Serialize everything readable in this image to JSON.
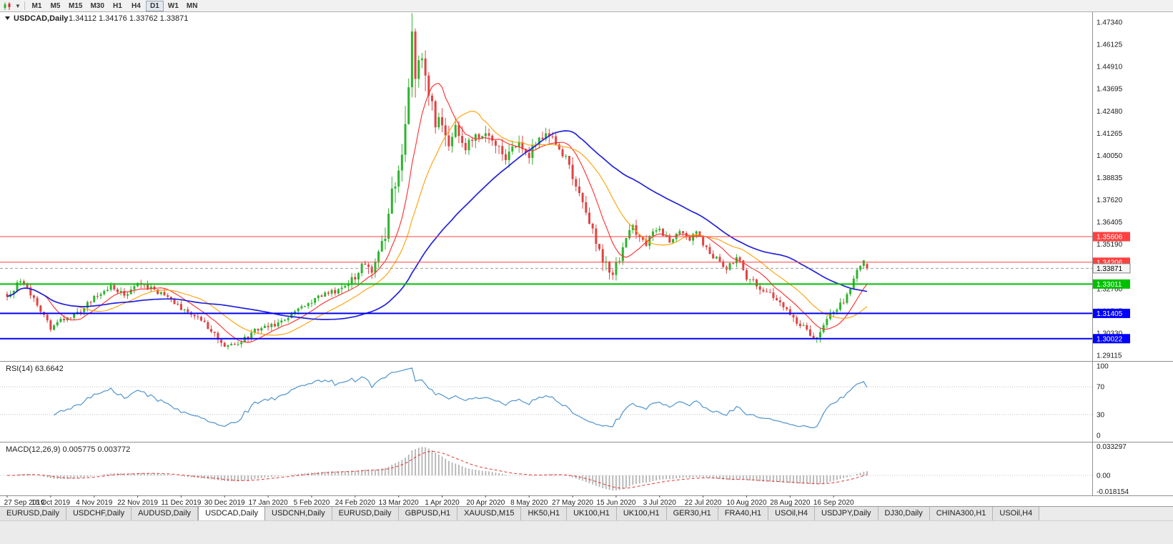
{
  "toolbar": {
    "chart_type_icon": "candlestick-chart-icon",
    "timeframes": [
      {
        "label": "M1",
        "active": false
      },
      {
        "label": "M5",
        "active": false
      },
      {
        "label": "M15",
        "active": false
      },
      {
        "label": "M30",
        "active": false
      },
      {
        "label": "H1",
        "active": false
      },
      {
        "label": "H4",
        "active": false
      },
      {
        "label": "D1",
        "active": true
      },
      {
        "label": "W1",
        "active": false
      },
      {
        "label": "MN",
        "active": false
      }
    ]
  },
  "chart_data": {
    "type": "candlestick",
    "symbol": "USDCAD",
    "timeframe": "Daily",
    "title": "USDCAD,Daily",
    "ohlc": {
      "open": "1.34112",
      "high": "1.34176",
      "low": "1.33762",
      "close": "1.33871"
    },
    "bars": 258,
    "price_scale": {
      "max": 1.4789,
      "min": 1.288
    },
    "y_axis_labels": [
      "1.47340",
      "1.46125",
      "1.44910",
      "1.43695",
      "1.42480",
      "1.41265",
      "1.40050",
      "1.38835",
      "1.37620",
      "1.36405",
      "1.35190",
      "1.33975",
      "1.32760",
      "1.31545",
      "1.30330",
      "1.29115"
    ],
    "x_axis_labels": [
      "27 Sep 2019",
      "16 Oct 2019",
      "4 Nov 2019",
      "22 Nov 2019",
      "11 Dec 2019",
      "30 Dec 2019",
      "17 Jan 2020",
      "5 Feb 2020",
      "24 Feb 2020",
      "13 Mar 2020",
      "1 Apr 2020",
      "20 Apr 2020",
      "8 May 2020",
      "27 May 2020",
      "15 Jun 2020",
      "3 Jul 2020",
      "22 Jul 2020",
      "10 Aug 2020",
      "28 Aug 2020",
      "16 Sep 2020"
    ],
    "x_label_bar_step": 13,
    "colors": {
      "up": "#2fb32f",
      "down": "#e04343",
      "background": "#ffffff",
      "axis_text": "#1a1a1a",
      "bid_line": "#9b9b9b"
    },
    "price_path_anchors": [
      [
        0,
        1.324
      ],
      [
        4,
        1.3315
      ],
      [
        8,
        1.323
      ],
      [
        13,
        1.3055
      ],
      [
        17,
        1.311
      ],
      [
        22,
        1.315
      ],
      [
        26,
        1.323
      ],
      [
        31,
        1.329
      ],
      [
        35,
        1.3245
      ],
      [
        39,
        1.3295
      ],
      [
        44,
        1.327
      ],
      [
        48,
        1.323
      ],
      [
        52,
        1.317
      ],
      [
        57,
        1.312
      ],
      [
        61,
        1.304
      ],
      [
        65,
        1.2968
      ],
      [
        68,
        1.2958
      ],
      [
        71,
        1.3
      ],
      [
        74,
        1.305
      ],
      [
        78,
        1.3068
      ],
      [
        83,
        1.3105
      ],
      [
        87,
        1.316
      ],
      [
        91,
        1.321
      ],
      [
        95,
        1.3245
      ],
      [
        99,
        1.327
      ],
      [
        104,
        1.334
      ],
      [
        107,
        1.342
      ],
      [
        109,
        1.339
      ],
      [
        111,
        1.346
      ],
      [
        113,
        1.358
      ],
      [
        114,
        1.372
      ],
      [
        116,
        1.386
      ],
      [
        117,
        1.395
      ],
      [
        119,
        1.418
      ],
      [
        120,
        1.442
      ],
      [
        121,
        1.463
      ],
      [
        122,
        1.445
      ],
      [
        124,
        1.451
      ],
      [
        126,
        1.436
      ],
      [
        128,
        1.416
      ],
      [
        130,
        1.421
      ],
      [
        132,
        1.408
      ],
      [
        134,
        1.417
      ],
      [
        137,
        1.406
      ],
      [
        140,
        1.411
      ],
      [
        143,
        1.415
      ],
      [
        146,
        1.408
      ],
      [
        149,
        1.399
      ],
      [
        152,
        1.407
      ],
      [
        156,
        1.401
      ],
      [
        159,
        1.409
      ],
      [
        162,
        1.413
      ],
      [
        165,
        1.404
      ],
      [
        167,
        1.399
      ],
      [
        169,
        1.39
      ],
      [
        171,
        1.378
      ],
      [
        173,
        1.368
      ],
      [
        175,
        1.358
      ],
      [
        177,
        1.349
      ],
      [
        179,
        1.34
      ],
      [
        181,
        1.337
      ],
      [
        183,
        1.345
      ],
      [
        185,
        1.354
      ],
      [
        187,
        1.362
      ],
      [
        189,
        1.356
      ],
      [
        191,
        1.353
      ],
      [
        193,
        1.357
      ],
      [
        195,
        1.359
      ],
      [
        198,
        1.3545
      ],
      [
        201,
        1.3575
      ],
      [
        204,
        1.3545
      ],
      [
        206,
        1.359
      ],
      [
        208,
        1.351
      ],
      [
        211,
        1.345
      ],
      [
        213,
        1.342
      ],
      [
        215,
        1.3395
      ],
      [
        217,
        1.343
      ],
      [
        219,
        1.3445
      ],
      [
        221,
        1.334
      ],
      [
        223,
        1.331
      ],
      [
        225,
        1.328
      ],
      [
        228,
        1.3245
      ],
      [
        231,
        1.3195
      ],
      [
        234,
        1.3125
      ],
      [
        237,
        1.308
      ],
      [
        240,
        1.3032
      ],
      [
        242,
        1.3006
      ],
      [
        244,
        1.309
      ],
      [
        246,
        1.314
      ],
      [
        248,
        1.3165
      ],
      [
        250,
        1.3205
      ],
      [
        252,
        1.329
      ],
      [
        254,
        1.3375
      ],
      [
        256,
        1.342
      ],
      [
        257,
        1.3387
      ]
    ],
    "volatility_anchors": [
      [
        0,
        0.0042
      ],
      [
        60,
        0.004
      ],
      [
        90,
        0.0038
      ],
      [
        104,
        0.0055
      ],
      [
        110,
        0.0085
      ],
      [
        114,
        0.013
      ],
      [
        118,
        0.0175
      ],
      [
        121,
        0.021
      ],
      [
        124,
        0.0165
      ],
      [
        128,
        0.013
      ],
      [
        134,
        0.0105
      ],
      [
        142,
        0.0085
      ],
      [
        152,
        0.0075
      ],
      [
        164,
        0.0065
      ],
      [
        170,
        0.0085
      ],
      [
        176,
        0.009
      ],
      [
        182,
        0.0075
      ],
      [
        190,
        0.0058
      ],
      [
        200,
        0.0048
      ],
      [
        210,
        0.0045
      ],
      [
        220,
        0.0048
      ],
      [
        232,
        0.0045
      ],
      [
        242,
        0.0055
      ],
      [
        250,
        0.0048
      ],
      [
        257,
        0.004
      ]
    ],
    "moving_averages": [
      {
        "period": 10,
        "color": "#ff2a2a"
      },
      {
        "period": 21,
        "color": "#ff9e00"
      },
      {
        "period": 50,
        "color": "#2222dd"
      }
    ],
    "horizontal_levels": [
      {
        "label": "1.35606",
        "price": 1.35606,
        "color": "#ff4040",
        "width": 1
      },
      {
        "label": "1.34206",
        "price": 1.34206,
        "color": "#ff4040",
        "width": 1
      },
      {
        "label": "1.33011",
        "price": 1.33011,
        "color": "#00c000",
        "width": 2
      },
      {
        "label": "1.31405",
        "price": 1.31405,
        "color": "#0000ff",
        "width": 2
      },
      {
        "label": "1.30022",
        "price": 1.30022,
        "color": "#0000ff",
        "width": 2
      }
    ],
    "current_price": {
      "value": 1.33871,
      "label": "1.33871"
    },
    "indicators": {
      "rsi": {
        "label": "RSI(14)",
        "value": "63.6642",
        "line_color": "#4f94cd",
        "axis_levels": [
          "100",
          "70",
          "30",
          "0"
        ],
        "level_lines": [
          70,
          30
        ],
        "period": 14
      },
      "macd": {
        "label": "MACD(12,26,9)",
        "value_main": "0.005775",
        "value_signal": "0.003772",
        "histogram_color": "#b4b4b4",
        "signal_color": "#e03535",
        "axis_top": "0.033297",
        "axis_zero": "0.00",
        "axis_bottom": "-0.018154",
        "fast": 12,
        "slow": 26,
        "signal": 9
      }
    }
  },
  "tabs": [
    {
      "label": "EURUSD,Daily",
      "active": false
    },
    {
      "label": "USDCHF,Daily",
      "active": false
    },
    {
      "label": "AUDUSD,Daily",
      "active": false
    },
    {
      "label": "USDCAD,Daily",
      "active": true
    },
    {
      "label": "USDCNH,Daily",
      "active": false
    },
    {
      "label": "EURUSD,Daily",
      "active": false
    },
    {
      "label": "GBPUSD,H1",
      "active": false
    },
    {
      "label": "XAUUSD,M15",
      "active": false
    },
    {
      "label": "HK50,H1",
      "active": false
    },
    {
      "label": "UK100,H1",
      "active": false
    },
    {
      "label": "UK100,H1",
      "active": false
    },
    {
      "label": "GER30,H1",
      "active": false
    },
    {
      "label": "FRA40,H1",
      "active": false
    },
    {
      "label": "USOil,H4",
      "active": false
    },
    {
      "label": "USDJPY,Daily",
      "active": false
    },
    {
      "label": "DJ30,Daily",
      "active": false
    },
    {
      "label": "CHINA300,H1",
      "active": false
    },
    {
      "label": "USOil,H4",
      "active": false
    }
  ]
}
